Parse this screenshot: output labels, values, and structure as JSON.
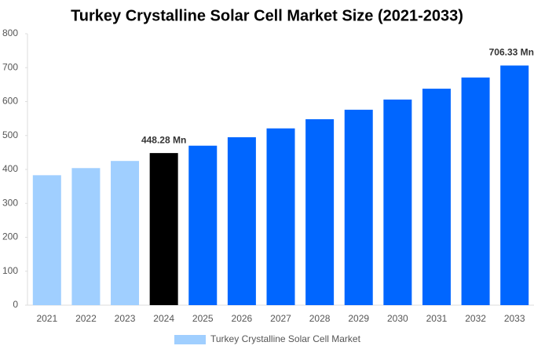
{
  "chart_data": {
    "type": "bar",
    "title": "Turkey Crystalline Solar Cell Market Size (2021-2033)",
    "categories": [
      "2021",
      "2022",
      "2023",
      "2024",
      "2025",
      "2026",
      "2027",
      "2028",
      "2029",
      "2030",
      "2031",
      "2032",
      "2033"
    ],
    "series": [
      {
        "name": "Turkey Crystalline Solar Cell Market",
        "color": "#a0cfff",
        "values": [
          383,
          404,
          425,
          448.28,
          470,
          495,
          521,
          548,
          576,
          606,
          638,
          671,
          706.33
        ],
        "value_labels": [
          null,
          null,
          null,
          "448.28 Mn",
          null,
          null,
          null,
          null,
          null,
          null,
          null,
          null,
          "706.33 Mn"
        ],
        "bar_colors": [
          "#a0cfff",
          "#a0cfff",
          "#a0cfff",
          "#000000",
          "#0066ff",
          "#0066ff",
          "#0066ff",
          "#0066ff",
          "#0066ff",
          "#0066ff",
          "#0066ff",
          "#0066ff",
          "#0066ff"
        ]
      }
    ],
    "ylim": [
      0,
      800
    ],
    "yticks": [
      0,
      100,
      200,
      300,
      400,
      500,
      600,
      700,
      800
    ],
    "grid": false,
    "legend": "bottom"
  }
}
